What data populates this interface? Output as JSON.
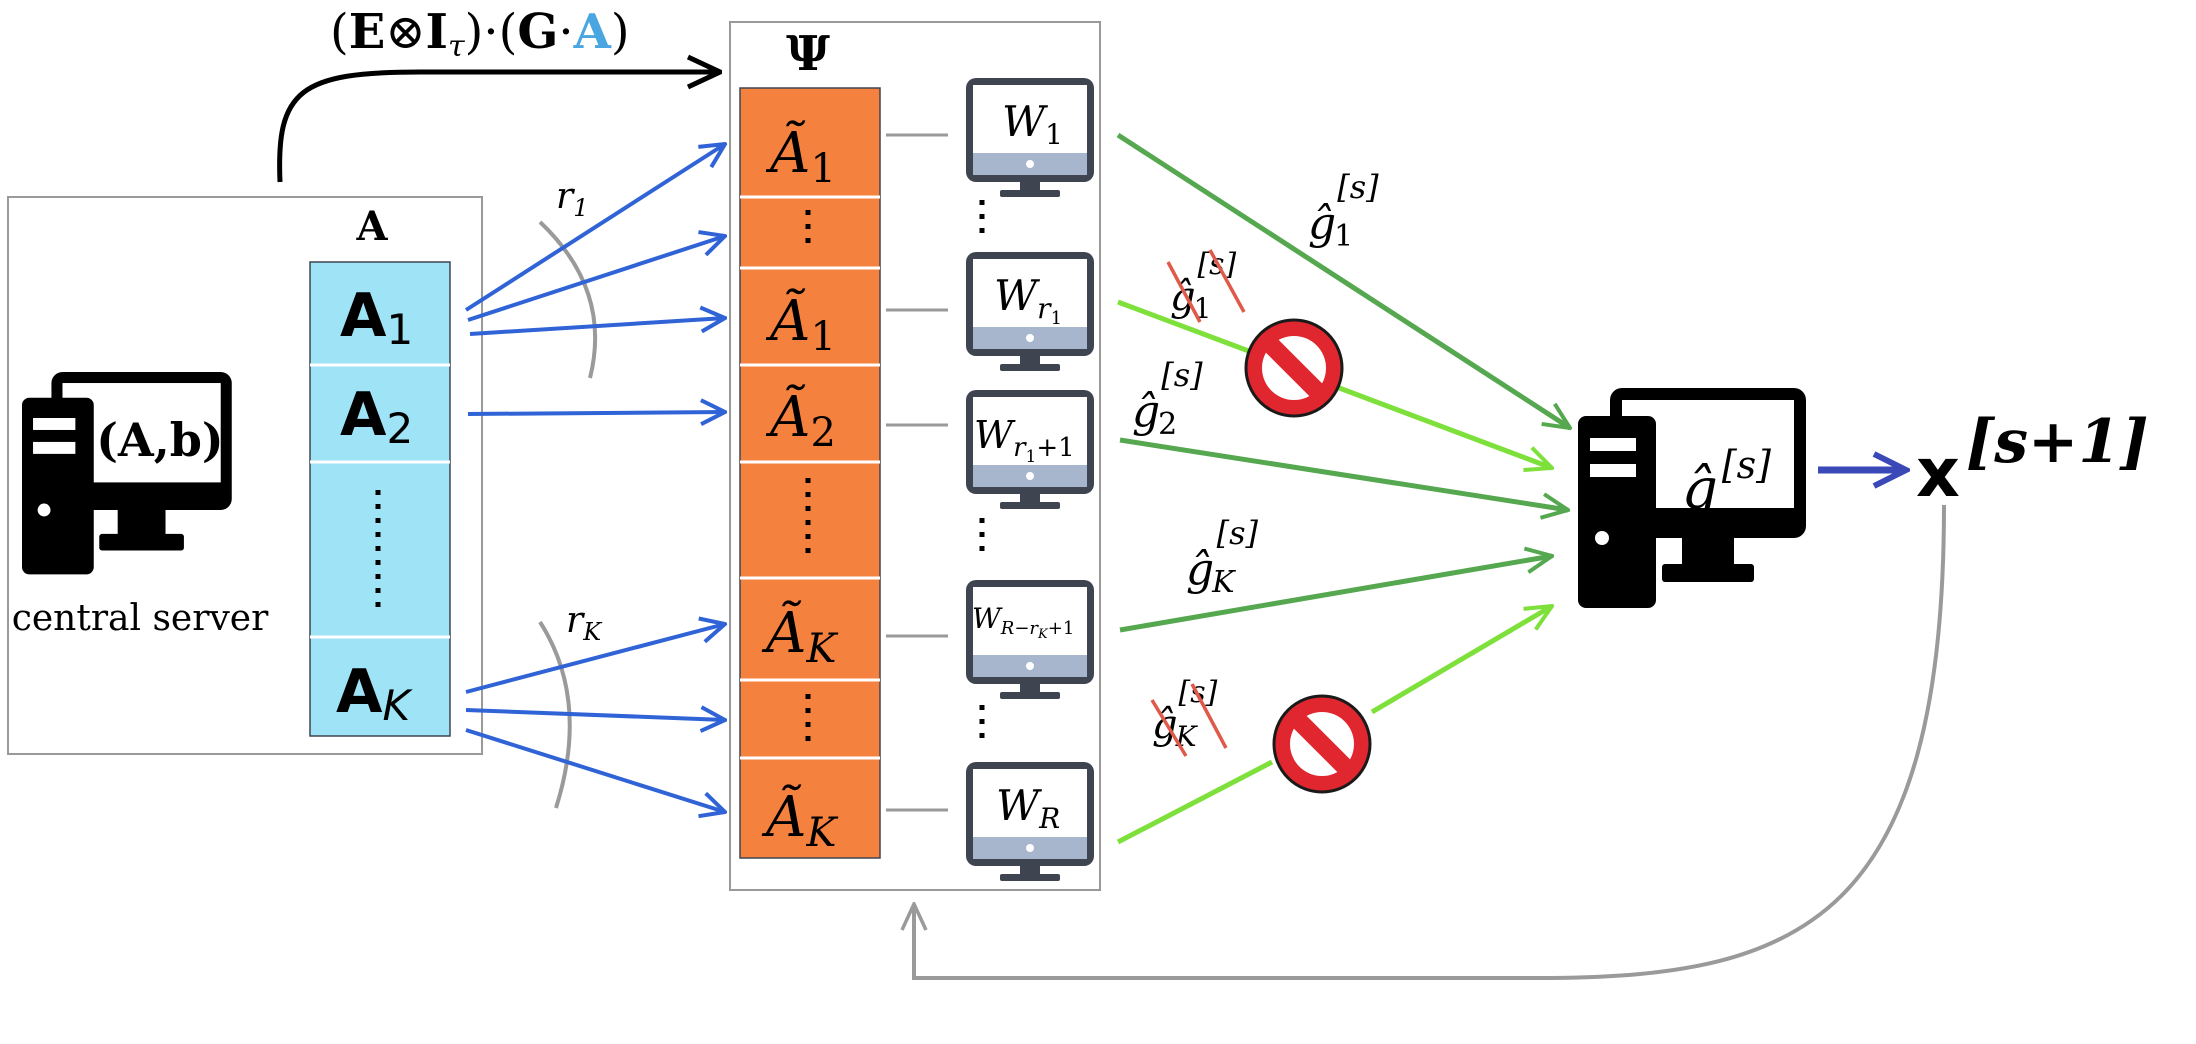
{
  "top_formula": {
    "open1": "(",
    "E": "E",
    "otimes": "⊗",
    "I": "I",
    "tau": "τ",
    "close1": ")·(",
    "G": "G",
    "dot": "·",
    "A": "A",
    "close2": ")"
  },
  "psi_label": "Ψ",
  "server": {
    "label": "central server",
    "ab_label": "(A,b)",
    "matrix_label": "A",
    "blocks": [
      {
        "base": "A",
        "sub": "1"
      },
      {
        "base": "A",
        "sub": "2"
      },
      {
        "base": "A",
        "sub": "K"
      }
    ]
  },
  "r_labels": [
    {
      "base": "r",
      "sub": "1"
    },
    {
      "base": "r",
      "sub": "K"
    }
  ],
  "encoded_blocks": [
    {
      "base": "Ã",
      "sub": "1"
    },
    {
      "base": "Ã",
      "sub": "1"
    },
    {
      "base": "Ã",
      "sub": "2"
    },
    {
      "base": "Ã",
      "sub": "K"
    },
    {
      "base": "Ã",
      "sub": "K"
    }
  ],
  "workers": [
    {
      "base": "W",
      "sub": "1"
    },
    {
      "base": "W",
      "sub": "r",
      "subsub": "1"
    },
    {
      "base": "W",
      "sub": "r",
      "subsub": "1",
      "suffix": "+1"
    },
    {
      "base": "W",
      "sub": "R−r",
      "subsub": "K",
      "suffix": "+1"
    },
    {
      "base": "W",
      "sub": "R"
    }
  ],
  "gradients": [
    {
      "base": "ĝ",
      "sub": "1",
      "sup": "[s]",
      "crossed": false
    },
    {
      "base": "ĝ",
      "sub": "1",
      "sup": "[s]",
      "crossed": true
    },
    {
      "base": "ĝ",
      "sub": "2",
      "sup": "[s]",
      "crossed": false
    },
    {
      "base": "ĝ",
      "sub": "K",
      "sup": "[s]",
      "crossed": false
    },
    {
      "base": "ĝ",
      "sub": "K",
      "sup": "[s]",
      "crossed": true
    }
  ],
  "aggregator": {
    "base": "ĝ",
    "sup": "[s]"
  },
  "next_iterate": {
    "base": "x",
    "sup": "[s+1]"
  },
  "colors": {
    "blue_arrow": "#2f63d6",
    "dark_green": "#55a84f",
    "light_green": "#7ee03a",
    "orange": "#f5813f",
    "light_blue": "#9fe3f7",
    "stop_red": "#e0262e",
    "crossout_red": "#e05a4a",
    "indigo_arrow": "#3a48b8",
    "gray": "#9a9a9a",
    "formula_blue": "#4aa6e0",
    "screen_gray": "#3f4550",
    "screen_base": "#a7b6cc"
  },
  "icons": [
    "server-computer-icon",
    "worker-monitor-icon",
    "stop-sign-icon"
  ]
}
